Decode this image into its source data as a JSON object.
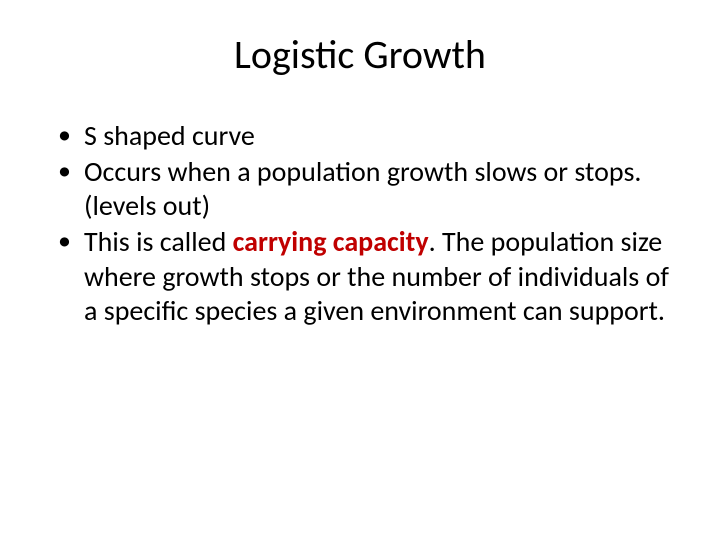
{
  "slide": {
    "title": "Logistic Growth",
    "bullets": [
      {
        "text": "S shaped curve"
      },
      {
        "text": "Occurs when a population growth slows or stops.  (levels out)"
      },
      {
        "pre": "This is called ",
        "emphasis": "carrying capacity",
        "post": ".  The population size where growth stops or the number of individuals of a specific species a given environment can support."
      }
    ]
  },
  "style": {
    "background_color": "#ffffff",
    "title_color": "#000000",
    "title_fontsize": 40,
    "body_color": "#000000",
    "body_fontsize": 28,
    "emphasis_color": "#c00000",
    "emphasis_weight": 700,
    "font_family": "Calibri"
  }
}
